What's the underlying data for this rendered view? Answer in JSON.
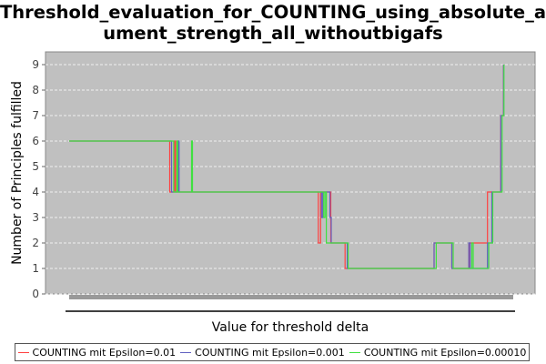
{
  "chart_data": {
    "type": "line",
    "title_line1": "Threshold_evaluation_for_COUNTING_using_absolute_arg",
    "title_line2": "ument_strength_all_withoutbigafs",
    "xlabel": "Value for threshold delta",
    "ylabel": "Number of Principles fulfilled",
    "ylim": [
      0,
      9.5
    ],
    "yticks": [
      0,
      1,
      2,
      3,
      4,
      5,
      6,
      7,
      8,
      9
    ],
    "xlim": [
      0,
      100
    ],
    "grid": true,
    "legend_position": "bottom",
    "plot_background": "#c0c0c0",
    "series": [
      {
        "name": "COUNTING mit Epsilon=0.01",
        "color": "#ff4040",
        "points": [
          [
            0,
            6
          ],
          [
            22.6,
            6
          ],
          [
            22.6,
            4
          ],
          [
            23.7,
            4
          ],
          [
            23.7,
            6
          ],
          [
            23.9,
            6
          ],
          [
            23.9,
            4
          ],
          [
            56,
            4
          ],
          [
            56,
            2
          ],
          [
            56.5,
            2
          ],
          [
            56.5,
            4
          ],
          [
            58.8,
            4
          ],
          [
            58.8,
            2
          ],
          [
            62,
            2
          ],
          [
            62,
            1
          ],
          [
            82,
            1
          ],
          [
            82,
            2
          ],
          [
            86,
            2
          ],
          [
            86,
            1
          ],
          [
            90,
            1
          ],
          [
            90,
            2
          ],
          [
            94,
            2
          ],
          [
            94,
            4
          ],
          [
            97,
            4
          ],
          [
            97,
            7
          ],
          [
            97.6,
            7
          ],
          [
            97.6,
            9
          ]
        ]
      },
      {
        "name": "COUNTING mit Epsilon=0.001",
        "color": "#6060c0",
        "points": [
          [
            0,
            6
          ],
          [
            23,
            6
          ],
          [
            23,
            4
          ],
          [
            24.5,
            4
          ],
          [
            24.5,
            6
          ],
          [
            24.7,
            6
          ],
          [
            24.7,
            4
          ],
          [
            56.7,
            4
          ],
          [
            56.7,
            3
          ],
          [
            57,
            3
          ],
          [
            57,
            4
          ],
          [
            58.6,
            4
          ],
          [
            58.6,
            3
          ],
          [
            58.9,
            3
          ],
          [
            58.9,
            2
          ],
          [
            62.5,
            2
          ],
          [
            62.5,
            1
          ],
          [
            82,
            1
          ],
          [
            82,
            2
          ],
          [
            86,
            2
          ],
          [
            86,
            1
          ],
          [
            89.8,
            1
          ],
          [
            89.8,
            2
          ],
          [
            90.1,
            2
          ],
          [
            90.1,
            1
          ],
          [
            94,
            1
          ],
          [
            94,
            2
          ],
          [
            95,
            2
          ],
          [
            95,
            4
          ],
          [
            97,
            4
          ],
          [
            97,
            7
          ],
          [
            97.6,
            7
          ],
          [
            97.6,
            9
          ]
        ]
      },
      {
        "name": "COUNTING mit Epsilon=0.00010",
        "color": "#40e040",
        "points": [
          [
            0,
            6
          ],
          [
            23.5,
            6
          ],
          [
            23.5,
            4
          ],
          [
            24.2,
            4
          ],
          [
            24.2,
            6
          ],
          [
            24.4,
            6
          ],
          [
            24.4,
            4
          ],
          [
            27.5,
            4
          ],
          [
            27.5,
            6
          ],
          [
            27.7,
            6
          ],
          [
            27.7,
            4
          ],
          [
            57.2,
            4
          ],
          [
            57.2,
            3
          ],
          [
            57.5,
            3
          ],
          [
            57.5,
            4
          ],
          [
            57.8,
            4
          ],
          [
            57.8,
            2
          ],
          [
            62.7,
            2
          ],
          [
            62.7,
            1
          ],
          [
            82.5,
            1
          ],
          [
            82.5,
            2
          ],
          [
            86.3,
            2
          ],
          [
            86.3,
            1
          ],
          [
            90.5,
            1
          ],
          [
            90.5,
            2
          ],
          [
            90.8,
            2
          ],
          [
            90.8,
            1
          ],
          [
            94.3,
            1
          ],
          [
            94.3,
            2
          ],
          [
            95.2,
            2
          ],
          [
            95.2,
            4
          ],
          [
            97.3,
            4
          ],
          [
            97.3,
            7
          ],
          [
            97.7,
            7
          ],
          [
            97.7,
            9
          ]
        ]
      }
    ]
  }
}
